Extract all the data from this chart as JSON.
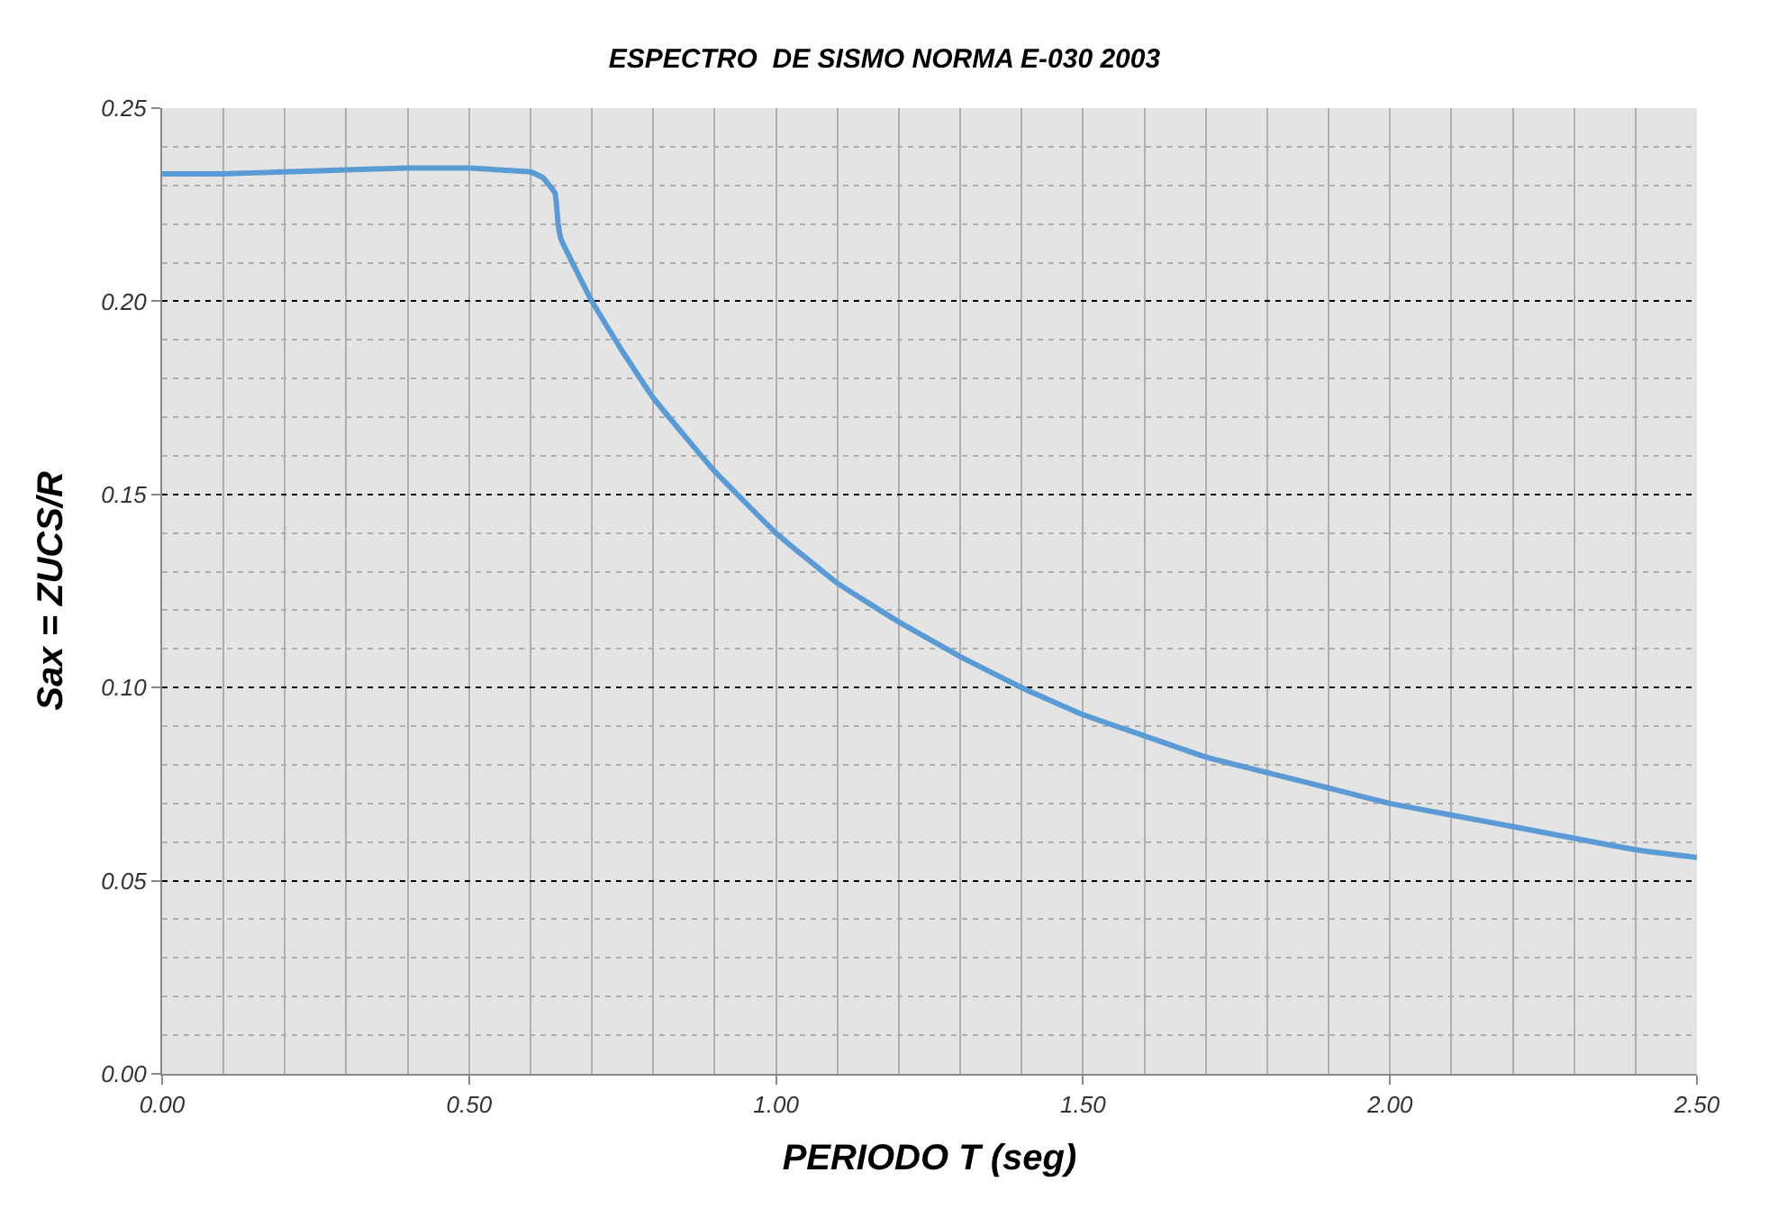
{
  "chart_data": {
    "type": "line",
    "title": "ESPECTRO  DE SISMO NORMA E-030 2003",
    "xlabel": "PERIODO T (seg)",
    "ylabel": "Sax = ZUCS/R",
    "x": [
      0,
      0.1,
      0.2,
      0.3,
      0.4,
      0.45,
      0.5,
      0.55,
      0.6,
      0.62,
      0.64,
      0.645,
      0.65,
      0.7,
      0.75,
      0.8,
      0.9,
      1.0,
      1.1,
      1.2,
      1.3,
      1.4,
      1.5,
      1.6,
      1.7,
      1.8,
      1.9,
      2.0,
      2.1,
      2.2,
      2.3,
      2.4,
      2.5
    ],
    "series": [
      {
        "color": "#5b9bd5",
        "values": [
          0.233,
          0.233,
          0.2335,
          0.234,
          0.2345,
          0.2345,
          0.2345,
          0.234,
          0.2335,
          0.232,
          0.228,
          0.22,
          0.216,
          0.2,
          0.187,
          0.175,
          0.156,
          0.14,
          0.127,
          0.117,
          0.108,
          0.1,
          0.093,
          0.0875,
          0.082,
          0.078,
          0.074,
          0.07,
          0.067,
          0.064,
          0.061,
          0.058,
          0.056
        ]
      }
    ],
    "xlim": [
      0,
      2.5
    ],
    "xticks": [
      {
        "value": 0,
        "label": "0.00"
      },
      {
        "value": 0.5,
        "label": "0.50"
      },
      {
        "value": 1,
        "label": "1.00"
      },
      {
        "value": 1.5,
        "label": "1.50"
      },
      {
        "value": 2,
        "label": "2.00"
      },
      {
        "value": 2.5,
        "label": "2.50"
      }
    ],
    "ylim": [
      0,
      0.25
    ],
    "yticks": [
      {
        "value": 0,
        "label": "0.00"
      },
      {
        "value": 0.05,
        "label": "0.05"
      },
      {
        "value": 0.1,
        "label": "0.10"
      },
      {
        "value": 0.15,
        "label": "0.15"
      },
      {
        "value": 0.2,
        "label": "0.20"
      },
      {
        "value": 0.25,
        "label": "0.25"
      }
    ],
    "grid": true,
    "legend": false,
    "marker": "none",
    "line_style": "solid"
  }
}
